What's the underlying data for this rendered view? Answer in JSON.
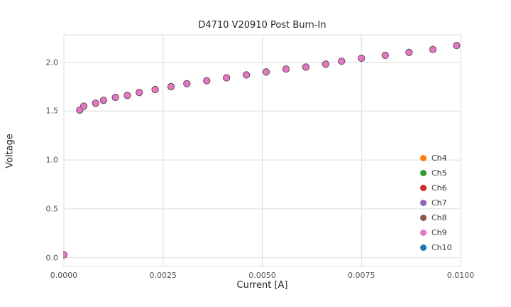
{
  "window": {
    "background": "#ffffff"
  },
  "chart_data": {
    "type": "scatter",
    "title": "D4710 V20910 Post Burn-In",
    "xlabel": "Current [A]",
    "ylabel": "Voltage",
    "xlim": [
      0.0,
      0.01
    ],
    "ylim": [
      -0.09,
      2.28
    ],
    "grid": true,
    "grid_color": "#dcdcdc",
    "legend_position": "lower right",
    "x_ticks": {
      "values": [
        0.0,
        0.0025,
        0.005,
        0.0075,
        0.01
      ],
      "labels": [
        "0.0000",
        "0.0025",
        "0.0050",
        "0.0075",
        "0.0100"
      ]
    },
    "y_ticks": {
      "values": [
        0.0,
        0.5,
        1.0,
        1.5,
        2.0
      ],
      "labels": [
        "0.0",
        "0.5",
        "1.0",
        "1.5",
        "2.0"
      ]
    },
    "x": [
      0.0,
      0.0004,
      0.0005,
      0.0008,
      0.001,
      0.0013,
      0.0016,
      0.0019,
      0.0023,
      0.0027,
      0.0031,
      0.0036,
      0.0041,
      0.0046,
      0.0051,
      0.0056,
      0.0061,
      0.0066,
      0.007,
      0.0075,
      0.0081,
      0.0087,
      0.0093,
      0.0099
    ],
    "series": [
      {
        "name": "Ch4",
        "color": "#ff7f0e",
        "values": [
          0.03,
          1.51,
          1.55,
          1.58,
          1.61,
          1.64,
          1.66,
          1.69,
          1.72,
          1.75,
          1.78,
          1.81,
          1.84,
          1.87,
          1.9,
          1.93,
          1.95,
          1.98,
          2.01,
          2.04,
          2.07,
          2.1,
          2.13,
          2.17
        ]
      },
      {
        "name": "Ch5",
        "color": "#2ca02c",
        "values": [
          0.03,
          1.51,
          1.55,
          1.58,
          1.61,
          1.64,
          1.66,
          1.69,
          1.72,
          1.75,
          1.78,
          1.81,
          1.84,
          1.87,
          1.9,
          1.93,
          1.95,
          1.98,
          2.01,
          2.04,
          2.07,
          2.1,
          2.13,
          2.17
        ]
      },
      {
        "name": "Ch6",
        "color": "#d62728",
        "values": [
          0.03,
          1.51,
          1.55,
          1.58,
          1.61,
          1.64,
          1.66,
          1.69,
          1.72,
          1.75,
          1.78,
          1.81,
          1.84,
          1.87,
          1.9,
          1.93,
          1.95,
          1.98,
          2.01,
          2.04,
          2.07,
          2.1,
          2.13,
          2.17
        ]
      },
      {
        "name": "Ch7",
        "color": "#9467bd",
        "values": [
          0.03,
          1.51,
          1.55,
          1.58,
          1.61,
          1.64,
          1.66,
          1.69,
          1.72,
          1.75,
          1.78,
          1.81,
          1.84,
          1.87,
          1.9,
          1.93,
          1.95,
          1.98,
          2.01,
          2.04,
          2.07,
          2.1,
          2.13,
          2.17
        ]
      },
      {
        "name": "Ch8",
        "color": "#8c564b",
        "values": [
          0.03,
          1.51,
          1.55,
          1.58,
          1.61,
          1.64,
          1.66,
          1.69,
          1.72,
          1.75,
          1.78,
          1.81,
          1.84,
          1.87,
          1.9,
          1.93,
          1.95,
          1.98,
          2.01,
          2.04,
          2.07,
          2.1,
          2.13,
          2.17
        ]
      },
      {
        "name": "Ch9",
        "color": "#e377c2",
        "values": [
          0.03,
          1.51,
          1.55,
          1.58,
          1.61,
          1.64,
          1.66,
          1.69,
          1.72,
          1.75,
          1.78,
          1.81,
          1.84,
          1.87,
          1.9,
          1.93,
          1.95,
          1.98,
          2.01,
          2.04,
          2.07,
          2.1,
          2.13,
          2.17
        ]
      },
      {
        "name": "Ch10",
        "color": "#1f77b4",
        "values": [
          0.03,
          1.51,
          1.55,
          1.58,
          1.61,
          1.64,
          1.66,
          1.69,
          1.72,
          1.75,
          1.78,
          1.81,
          1.84,
          1.87,
          1.9,
          1.93,
          1.95,
          1.98,
          2.01,
          2.04,
          2.07,
          2.1,
          2.13,
          2.17
        ]
      }
    ],
    "draw_order": [
      "Ch4",
      "Ch5",
      "Ch6",
      "Ch7",
      "Ch8",
      "Ch10",
      "Ch9"
    ],
    "marker": {
      "radius_px": 4.5,
      "edge_color": "rgba(95,65,75,0.55)"
    },
    "note": "All channel series overlap; top-most visible marker color is Ch9 pink."
  }
}
